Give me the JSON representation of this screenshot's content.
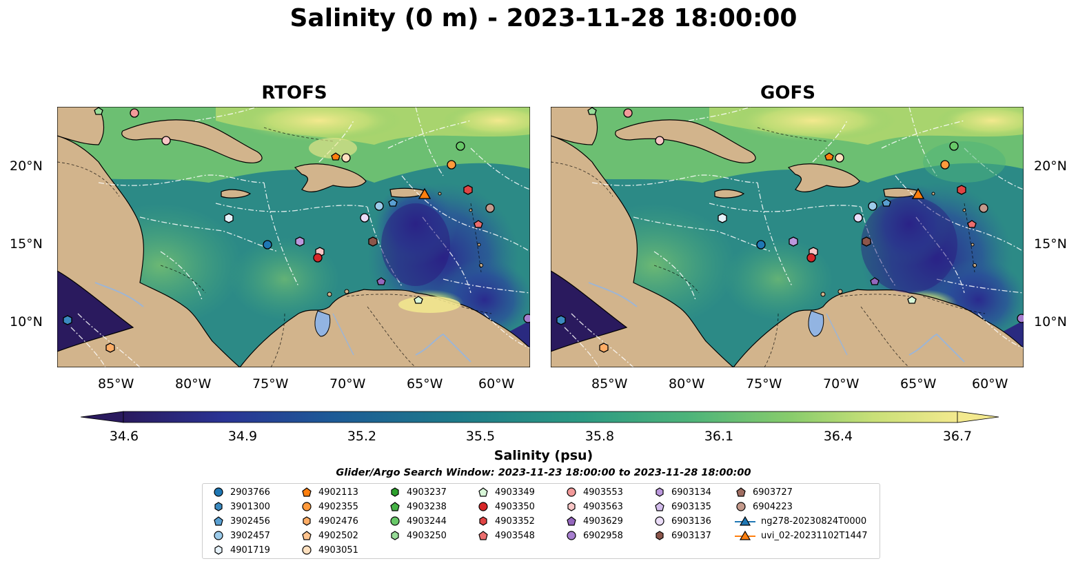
{
  "title": "Salinity (0 m) - 2023-11-28 18:00:00",
  "panels": [
    {
      "name": "RTOFS"
    },
    {
      "name": "GOFS"
    }
  ],
  "axes": {
    "lon_ticks": [
      "85°W",
      "80°W",
      "75°W",
      "70°W",
      "65°W",
      "60°W"
    ],
    "lat_ticks": [
      "20°N",
      "15°N",
      "10°N"
    ]
  },
  "colorbar": {
    "label": "Salinity (psu)",
    "ticks": [
      "34.6",
      "34.9",
      "35.2",
      "35.5",
      "35.8",
      "36.1",
      "36.4",
      "36.7"
    ],
    "range": [
      34.6,
      36.7
    ],
    "colormap": [
      "#2a1a5e",
      "#2a3394",
      "#1d5a96",
      "#1e7b8a",
      "#2c9a83",
      "#4eb47a",
      "#88cc6c",
      "#c9e078",
      "#f3e98e"
    ]
  },
  "search_window": "Glider/Argo Search Window: 2023-11-23 18:00:00 to 2023-11-28 18:00:00",
  "legend": {
    "columns": [
      [
        {
          "label": "2903766",
          "marker": "circle",
          "color": "#1f77b4"
        },
        {
          "label": "3901300",
          "marker": "hexagon",
          "color": "#3b8ac0"
        },
        {
          "label": "3902456",
          "marker": "pentagon",
          "color": "#5aa0d2"
        },
        {
          "label": "3902457",
          "marker": "circle",
          "color": "#9ccbea"
        },
        {
          "label": "4901719",
          "marker": "hexagon",
          "color": "#e6f2fb"
        }
      ],
      [
        {
          "label": "4902113",
          "marker": "pentagon",
          "color": "#ff7f0e"
        },
        {
          "label": "4902355",
          "marker": "circle",
          "color": "#ff9a3c"
        },
        {
          "label": "4902476",
          "marker": "hexagon",
          "color": "#ffad66"
        },
        {
          "label": "4902502",
          "marker": "pentagon",
          "color": "#ffc48f"
        },
        {
          "label": "4903051",
          "marker": "circle",
          "color": "#ffe0bf"
        }
      ],
      [
        {
          "label": "4903237",
          "marker": "hexagon",
          "color": "#2ca02c"
        },
        {
          "label": "4903238",
          "marker": "pentagon",
          "color": "#46b346"
        },
        {
          "label": "4903244",
          "marker": "circle",
          "color": "#68c868"
        },
        {
          "label": "4903250",
          "marker": "hexagon",
          "color": "#98dc98"
        }
      ],
      [
        {
          "label": "4903349",
          "marker": "pentagon",
          "color": "#d8f7d8"
        },
        {
          "label": "4903350",
          "marker": "circle",
          "color": "#d62728"
        },
        {
          "label": "4903352",
          "marker": "hexagon",
          "color": "#e04545"
        },
        {
          "label": "4903548",
          "marker": "pentagon",
          "color": "#eb6e6e"
        }
      ],
      [
        {
          "label": "4903553",
          "marker": "circle",
          "color": "#f29a9a"
        },
        {
          "label": "4903563",
          "marker": "hexagon",
          "color": "#f8c6c6"
        },
        {
          "label": "4903629",
          "marker": "pentagon",
          "color": "#9467bd"
        },
        {
          "label": "6902958",
          "marker": "circle",
          "color": "#a77fcf"
        }
      ],
      [
        {
          "label": "6903134",
          "marker": "hexagon",
          "color": "#bb98dd"
        },
        {
          "label": "6903135",
          "marker": "pentagon",
          "color": "#d3bdec"
        },
        {
          "label": "6903136",
          "marker": "circle",
          "color": "#ebddf8"
        },
        {
          "label": "6903137",
          "marker": "hexagon",
          "color": "#8c564b"
        }
      ],
      [
        {
          "label": "6903727",
          "marker": "pentagon",
          "color": "#a06e62"
        },
        {
          "label": "6904223",
          "marker": "circle",
          "color": "#c49a8c"
        },
        {
          "label": "ng278-20230824T0000",
          "marker": "triangle-line",
          "color": "#1f77b4"
        },
        {
          "label": "uvi_02-20231102T1447",
          "marker": "triangle-line",
          "color": "#ff7f0e"
        }
      ]
    ]
  }
}
